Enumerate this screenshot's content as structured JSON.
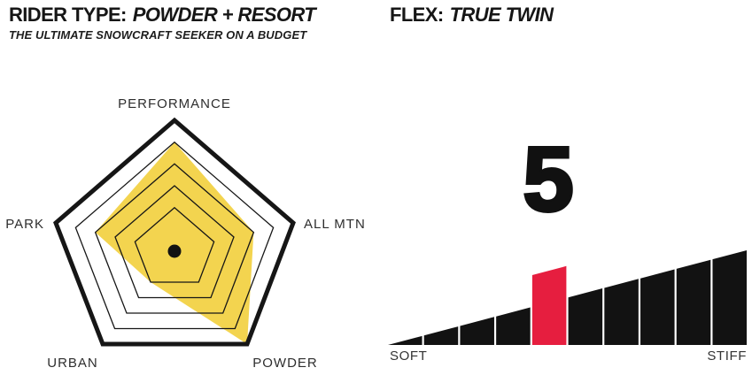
{
  "header": {
    "rider_type_label": "RIDER TYPE:",
    "rider_type_value": "POWDER + RESORT",
    "rider_subtitle": "THE ULTIMATE SNOWCRAFT SEEKER ON A BUDGET",
    "flex_label": "FLEX:",
    "flex_value": "TRUE TWIN"
  },
  "colors": {
    "radar_fill_yellow": "#F2D246",
    "flex_highlight_red": "#E61E3F",
    "bar_black": "#121212",
    "line_black": "#161616",
    "label_gray": "#2E2E2E"
  },
  "chart_data": [
    {
      "type": "radar",
      "title": "RIDER TYPE: POWDER + RESORT",
      "axes": [
        "PERFORMANCE",
        "ALL MTN",
        "POWDER",
        "URBAN",
        "PARK"
      ],
      "values": [
        4,
        3,
        5,
        1,
        3
      ],
      "value_max": 5,
      "rings": 5,
      "ring_scales": [
        0.333,
        0.5,
        0.667,
        0.833,
        1.0
      ],
      "fill_color": "#F2D246",
      "fill_opacity": 0.95,
      "ring_color": "#161616",
      "center_dot": true,
      "legend": "none",
      "grid": "pentagon"
    },
    {
      "type": "bar",
      "title": "FLEX: TRUE TWIN",
      "rating": 5,
      "scale_max": 10,
      "min_label": "SOFT",
      "max_label": "STIFF",
      "bar_color": "#121212",
      "highlight_color": "#E61E3F",
      "shape": "ascending-ramp"
    }
  ]
}
